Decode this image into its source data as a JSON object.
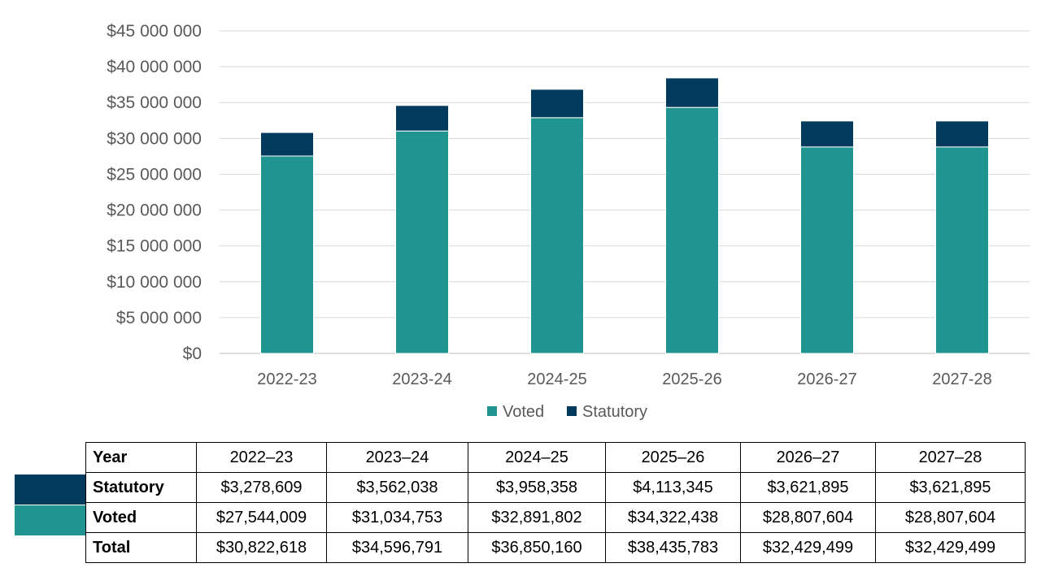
{
  "chart_data": {
    "type": "bar",
    "stacked": true,
    "categories": [
      "2022-23",
      "2023-24",
      "2024-25",
      "2025-26",
      "2026-27",
      "2027-28"
    ],
    "series": [
      {
        "name": "Voted",
        "values": [
          27544009,
          31034753,
          32891802,
          34322438,
          28807604,
          28807604
        ]
      },
      {
        "name": "Statutory",
        "values": [
          3278609,
          3562038,
          3958358,
          4113345,
          3621895,
          3621895
        ]
      }
    ],
    "ylim": [
      0,
      45000000
    ],
    "yticks": [
      0,
      5000000,
      10000000,
      15000000,
      20000000,
      25000000,
      30000000,
      35000000,
      40000000,
      45000000
    ],
    "ytick_labels": [
      "$0",
      "$5 000 000",
      "$10 000 000",
      "$15 000 000",
      "$20 000 000",
      "$25 000 000",
      "$30 000 000",
      "$35 000 000",
      "$40 000 000",
      "$45 000 000"
    ],
    "grid": true,
    "legend_position": "bottom",
    "title": "",
    "xlabel": "",
    "ylabel": ""
  },
  "colors": {
    "voted": "#1f9490",
    "statutory": "#003a5d",
    "grid": "#d9d9d9",
    "axis": "#bfbfbf"
  },
  "table": {
    "header_label": "Year",
    "columns": [
      "2022–23",
      "2023–24",
      "2024–25",
      "2025–26",
      "2026–27",
      "2027–28"
    ],
    "rows": [
      {
        "label": "Statutory",
        "values": [
          "$3,278,609",
          "$3,562,038",
          "$3,958,358",
          "$4,113,345",
          "$3,621,895",
          "$3,621,895"
        ]
      },
      {
        "label": "Voted",
        "values": [
          "$27,544,009",
          "$31,034,753",
          "$32,891,802",
          "$34,322,438",
          "$28,807,604",
          "$28,807,604"
        ]
      },
      {
        "label": "Total",
        "values": [
          "$30,822,618",
          "$34,596,791",
          "$36,850,160",
          "$38,435,783",
          "$32,429,499",
          "$32,429,499"
        ]
      }
    ]
  }
}
